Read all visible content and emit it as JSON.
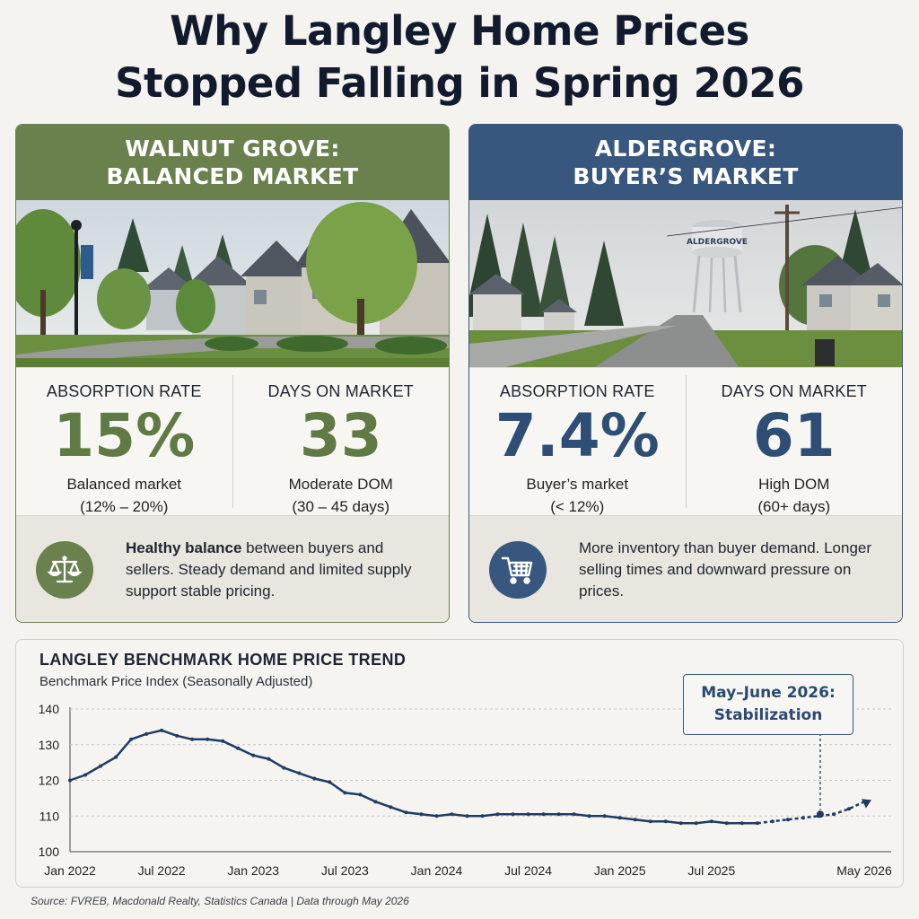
{
  "title": {
    "line1": "Why Langley Home Prices",
    "line2": "Stopped Falling in Spring 2026"
  },
  "walnut": {
    "heading1": "WALNUT GROVE:",
    "heading2": "BALANCED MARKET",
    "absorption_label": "ABSORPTION RATE",
    "absorption_value": "15%",
    "absorption_desc1": "Balanced market",
    "absorption_desc2": "(12% – 20%)",
    "dom_label": "DAYS ON MARKET",
    "dom_value": "33",
    "dom_desc1": "Moderate DOM",
    "dom_desc2": "(30 – 45 days)",
    "note_bold": "Healthy balance",
    "note_rest": " between buyers and sellers. Steady demand and limited supply support stable pricing.",
    "icon": "balance-scale-icon"
  },
  "aldergrove": {
    "heading1": "ALDERGROVE:",
    "heading2": "BUYER’S MARKET",
    "tower_text": "ALDERGROVE",
    "absorption_label": "ABSORPTION RATE",
    "absorption_value": "7.4%",
    "absorption_desc1": "Buyer’s market",
    "absorption_desc2": "(< 12%)",
    "dom_label": "DAYS ON MARKET",
    "dom_value": "61",
    "dom_desc1": "High DOM",
    "dom_desc2": "(60+ days)",
    "note": "More inventory than buyer demand. Longer selling times and downward pressure on prices.",
    "icon": "shopping-cart-icon"
  },
  "colors": {
    "green": "#6a814e",
    "blue": "#37577f",
    "line": "#1f3b63"
  },
  "chart_data": {
    "type": "line",
    "title": "LANGLEY BENCHMARK HOME PRICE TREND",
    "subtitle": "Benchmark Price Index (Seasonally Adjusted)",
    "ylim": [
      100,
      140
    ],
    "yticks": [
      100,
      110,
      120,
      130,
      140
    ],
    "xticks": [
      "Jan 2022",
      "Jul 2022",
      "Jan 2023",
      "Jul 2023",
      "Jan 2024",
      "Jul 2024",
      "Jan 2025",
      "Jul 2025",
      "May 2026"
    ],
    "grid": true,
    "series": [
      {
        "values": [
          [
            "2022-01",
            120
          ],
          [
            "2022-02",
            121.5
          ],
          [
            "2022-03",
            124
          ],
          [
            "2022-04",
            126.5
          ],
          [
            "2022-05",
            131.5
          ],
          [
            "2022-06",
            133
          ],
          [
            "2022-07",
            134
          ],
          [
            "2022-08",
            132.5
          ],
          [
            "2022-09",
            131.5
          ],
          [
            "2022-10",
            131.5
          ],
          [
            "2022-11",
            131
          ],
          [
            "2022-12",
            129
          ],
          [
            "2023-01",
            127
          ],
          [
            "2023-02",
            126
          ],
          [
            "2023-03",
            123.5
          ],
          [
            "2023-04",
            122
          ],
          [
            "2023-05",
            120.5
          ],
          [
            "2023-06",
            119.5
          ],
          [
            "2023-07",
            116.5
          ],
          [
            "2023-08",
            116
          ],
          [
            "2023-09",
            114
          ],
          [
            "2023-10",
            112.5
          ],
          [
            "2023-11",
            111
          ],
          [
            "2023-12",
            110.5
          ],
          [
            "2024-01",
            110
          ],
          [
            "2024-02",
            110.5
          ],
          [
            "2024-03",
            110
          ],
          [
            "2024-04",
            110
          ],
          [
            "2024-05",
            110.5
          ],
          [
            "2024-06",
            110.5
          ],
          [
            "2024-07",
            110.5
          ],
          [
            "2024-08",
            110.5
          ],
          [
            "2024-09",
            110.5
          ],
          [
            "2024-10",
            110.5
          ],
          [
            "2024-11",
            110
          ],
          [
            "2024-12",
            110
          ],
          [
            "2025-01",
            109.5
          ],
          [
            "2025-02",
            109
          ],
          [
            "2025-03",
            108.5
          ],
          [
            "2025-04",
            108.5
          ],
          [
            "2025-05",
            108
          ],
          [
            "2025-06",
            108
          ],
          [
            "2025-07",
            108.5
          ],
          [
            "2025-08",
            108
          ],
          [
            "2025-09",
            108
          ],
          [
            "2025-10",
            108
          ]
        ]
      },
      {
        "style": "dashed",
        "values": [
          [
            "2025-10",
            108
          ],
          [
            "2025-11",
            108.5
          ],
          [
            "2025-12",
            109
          ],
          [
            "2026-01",
            109.5
          ],
          [
            "2026-02",
            110
          ],
          [
            "2026-03",
            110.5
          ],
          [
            "2026-04",
            112
          ],
          [
            "2026-05",
            114
          ]
        ]
      }
    ],
    "annotation": {
      "label1": "May–June 2026:",
      "label2": "Stabilization",
      "x": "2026-02",
      "y": 110.5
    }
  },
  "source": "Source: FVREB, Macdonald Realty, Statistics Canada   |   Data through May 2026"
}
